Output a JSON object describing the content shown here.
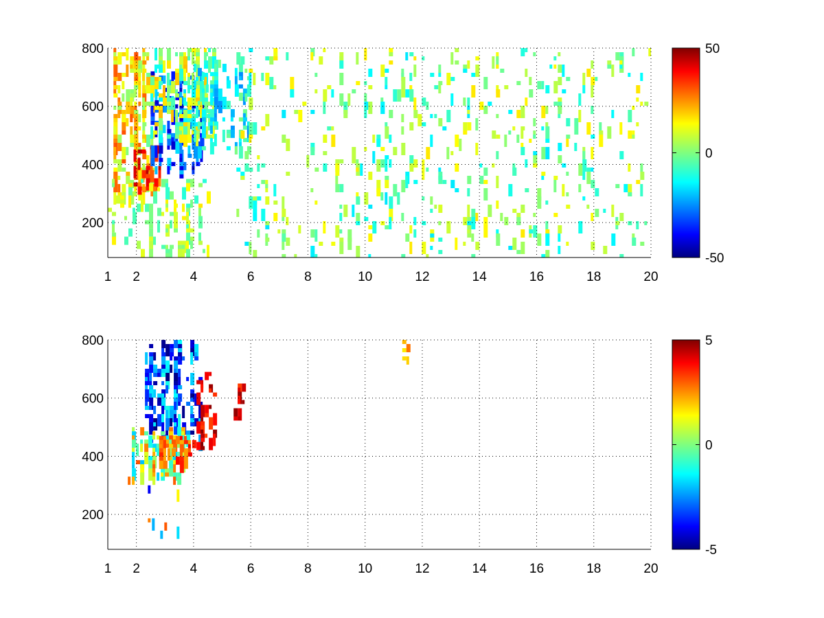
{
  "figure": {
    "background": "#ffffff"
  },
  "chart_data": [
    {
      "type": "heatmap",
      "colormap": "jet",
      "grid": true,
      "grid_style": "dotted",
      "xlim": [
        1,
        20
      ],
      "ylim": [
        80,
        800
      ],
      "x_ticks": [
        {
          "value": 1,
          "label": "1"
        },
        {
          "value": 2,
          "label": "2"
        },
        {
          "value": 4,
          "label": "4"
        },
        {
          "value": 6,
          "label": "6"
        },
        {
          "value": 8,
          "label": "8"
        },
        {
          "value": 10,
          "label": "10"
        },
        {
          "value": 12,
          "label": "12"
        },
        {
          "value": 14,
          "label": "14"
        },
        {
          "value": 16,
          "label": "16"
        },
        {
          "value": 18,
          "label": "18"
        },
        {
          "value": 20,
          "label": "20"
        }
      ],
      "y_ticks": [
        {
          "value": 200,
          "label": "200"
        },
        {
          "value": 400,
          "label": "400"
        },
        {
          "value": 600,
          "label": "600"
        },
        {
          "value": 800,
          "label": "800"
        }
      ],
      "colorbar": {
        "range": [
          -50,
          50
        ],
        "ticks": [
          {
            "value": 50,
            "label": "50"
          },
          {
            "value": 0,
            "label": "0"
          },
          {
            "value": -50,
            "label": "-50"
          }
        ]
      },
      "clusters": [
        {
          "x_range": [
            1.2,
            2.6
          ],
          "y_range": [
            300,
            800
          ],
          "value_range": [
            0,
            30
          ],
          "density": 0.55
        },
        {
          "x_range": [
            1.9,
            2.9
          ],
          "y_range": [
            320,
            480
          ],
          "value_range": [
            20,
            45
          ],
          "density": 0.55
        },
        {
          "x_range": [
            2.5,
            4.3
          ],
          "y_range": [
            380,
            720
          ],
          "value_range": [
            -45,
            -15
          ],
          "density": 0.6
        },
        {
          "x_range": [
            2.2,
            4.7
          ],
          "y_range": [
            500,
            800
          ],
          "value_range": [
            -15,
            20
          ],
          "density": 0.5
        },
        {
          "x_range": [
            4.0,
            5.9
          ],
          "y_range": [
            450,
            760
          ],
          "value_range": [
            -25,
            0
          ],
          "density": 0.4
        },
        {
          "x_range": [
            1.0,
            4.5
          ],
          "y_range": [
            80,
            350
          ],
          "value_range": [
            -10,
            15
          ],
          "density": 0.22
        },
        {
          "x_range": [
            5.5,
            20
          ],
          "y_range": [
            80,
            800
          ],
          "value_range": [
            -15,
            15
          ],
          "density": 0.11
        }
      ]
    },
    {
      "type": "heatmap",
      "colormap": "jet",
      "grid": true,
      "grid_style": "dotted",
      "xlim": [
        1,
        20
      ],
      "ylim": [
        80,
        800
      ],
      "x_ticks": [
        {
          "value": 1,
          "label": "1"
        },
        {
          "value": 2,
          "label": "2"
        },
        {
          "value": 4,
          "label": "4"
        },
        {
          "value": 6,
          "label": "6"
        },
        {
          "value": 8,
          "label": "8"
        },
        {
          "value": 10,
          "label": "10"
        },
        {
          "value": 12,
          "label": "12"
        },
        {
          "value": 14,
          "label": "14"
        },
        {
          "value": 16,
          "label": "16"
        },
        {
          "value": 18,
          "label": "18"
        },
        {
          "value": 20,
          "label": "20"
        }
      ],
      "y_ticks": [
        {
          "value": 200,
          "label": "200"
        },
        {
          "value": 400,
          "label": "400"
        },
        {
          "value": 600,
          "label": "600"
        },
        {
          "value": 800,
          "label": "800"
        }
      ],
      "colorbar": {
        "range": [
          -5,
          5
        ],
        "ticks": [
          {
            "value": 5,
            "label": "5"
          },
          {
            "value": 0,
            "label": "0"
          },
          {
            "value": -5,
            "label": "-5"
          }
        ]
      },
      "clusters": [
        {
          "x_range": [
            2.3,
            4.2
          ],
          "y_range": [
            450,
            800
          ],
          "value_range": [
            -5,
            -1
          ],
          "density": 0.45
        },
        {
          "x_range": [
            1.7,
            3.6
          ],
          "y_range": [
            320,
            500
          ],
          "value_range": [
            -2,
            3
          ],
          "density": 0.5
        },
        {
          "x_range": [
            2.8,
            4.2
          ],
          "y_range": [
            380,
            470
          ],
          "value_range": [
            2,
            4
          ],
          "density": 0.45
        },
        {
          "x_range": [
            4.1,
            4.8
          ],
          "y_range": [
            430,
            690
          ],
          "value_range": [
            3,
            5
          ],
          "density": 0.4
        },
        {
          "x_range": [
            5.4,
            5.7
          ],
          "y_range": [
            530,
            650
          ],
          "value_range": [
            3,
            5
          ],
          "density": 0.5
        },
        {
          "x_range": [
            11.3,
            11.5
          ],
          "y_range": [
            730,
            800
          ],
          "value_range": [
            1,
            3
          ],
          "density": 0.9
        },
        {
          "x_range": [
            2.4,
            4.2
          ],
          "y_range": [
            100,
            300
          ],
          "value_range": [
            -4,
            4
          ],
          "density": 0.05
        }
      ]
    }
  ]
}
